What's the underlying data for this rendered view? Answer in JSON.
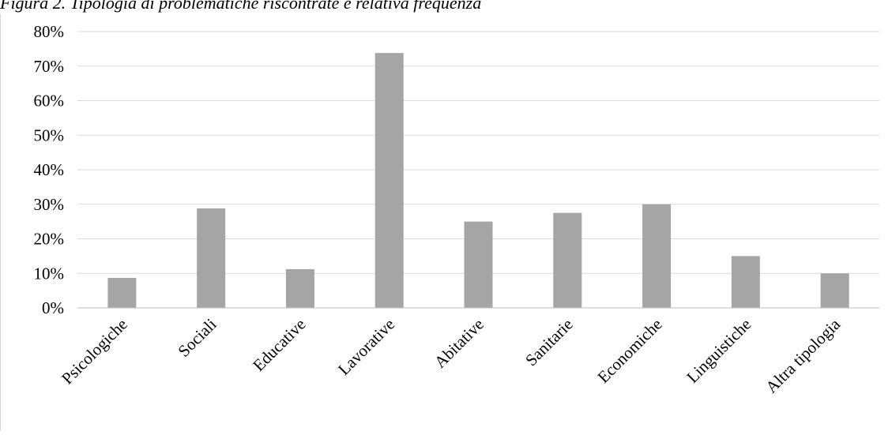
{
  "caption": "Figura 2. Tipologia di problematiche riscontrate e relativa frequenza",
  "colors": {
    "bar": "#a5a5a5",
    "gridline": "#d9d9d9",
    "axis": "#bfbfbf"
  },
  "chart_data": {
    "type": "bar",
    "title": "",
    "xlabel": "",
    "ylabel": "",
    "categories": [
      "Psicologiche",
      "Sociali",
      "Educative",
      "Lavorative",
      "Abitative",
      "Sanitarie",
      "Economiche",
      "Linguistiche",
      "Altra tipologia"
    ],
    "values": [
      8.7,
      28.8,
      11.2,
      73.8,
      25.0,
      27.5,
      30.0,
      15.0,
      10.0
    ],
    "ylim": [
      0,
      80
    ],
    "yticks": [
      "0%",
      "10%",
      "20%",
      "30%",
      "40%",
      "50%",
      "60%",
      "70%",
      "80%"
    ],
    "grid": true,
    "legend": "none"
  }
}
